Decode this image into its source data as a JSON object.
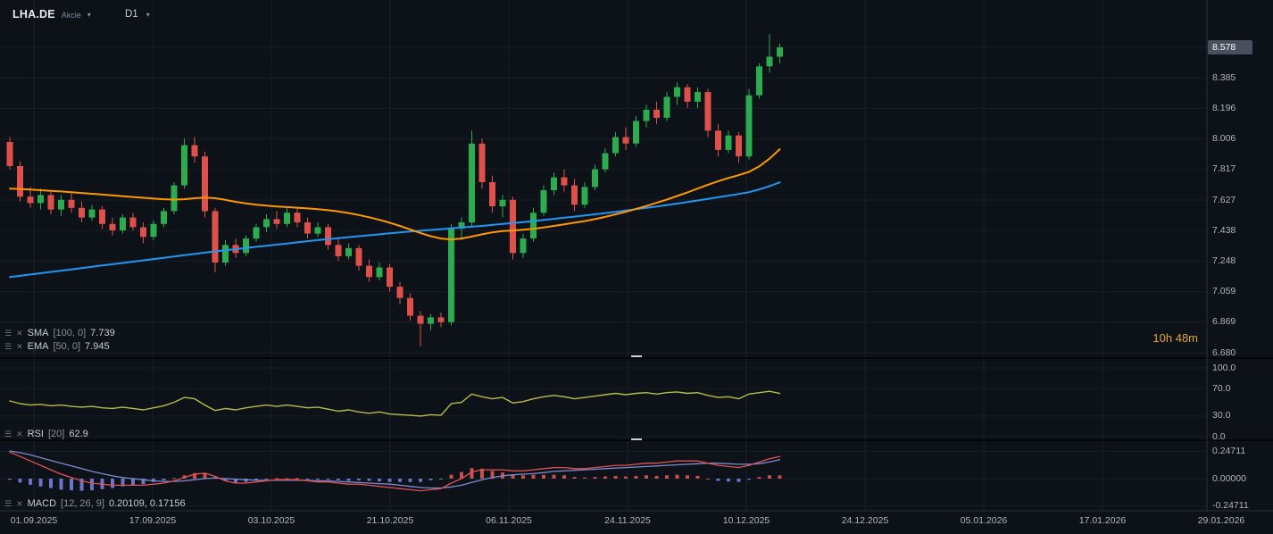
{
  "header": {
    "symbol": "LHA.DE",
    "instrument_type": "Akcie",
    "timeframe": "D1"
  },
  "countdown": {
    "label": "10h 48m"
  },
  "indicators": {
    "sma": {
      "name": "SMA",
      "params": "[100, 0]",
      "value": "7.739"
    },
    "ema": {
      "name": "EMA",
      "params": "[50, 0]",
      "value": "7.945"
    },
    "rsi": {
      "name": "RSI",
      "params": "[20]",
      "value": "62.9"
    },
    "macd": {
      "name": "MACD",
      "params": "[12, 26, 9]",
      "value": "0.20109, 0.17156"
    }
  },
  "price_axis": {
    "last_price": "8.578",
    "labels": [
      "8.578",
      "8.385",
      "8.196",
      "8.006",
      "7.817",
      "7.627",
      "7.438",
      "7.248",
      "7.059",
      "6.869",
      "6.680"
    ]
  },
  "rsi_axis": {
    "labels": [
      "100.0",
      "70.0",
      "30.0",
      "0.0"
    ]
  },
  "macd_axis": {
    "labels": [
      "0.24711",
      "0.00000",
      "-0.24711"
    ]
  },
  "time_axis": {
    "labels": [
      "01.09.2025",
      "17.09.2025",
      "03.10.2025",
      "21.10.2025",
      "06.11.2025",
      "24.11.2025",
      "10.12.2025",
      "24.12.2025",
      "05.01.2026",
      "17.01.2026",
      "29.01.2026"
    ]
  },
  "chart_data": {
    "type": "candlestick",
    "symbol": "LHA.DE",
    "interval": "D1",
    "title": "LHA.DE daily candlestick chart with EMA(50), SMA(100), RSI(20), MACD(12,26,9)",
    "price_range": {
      "top": 8.578,
      "bottom": 6.68
    },
    "rsi_range": [
      0,
      100
    ],
    "macd_range": [
      -0.24711,
      0.24711
    ],
    "candles": [
      [
        7.99,
        8.02,
        7.82,
        7.84
      ],
      [
        7.84,
        7.87,
        7.62,
        7.65
      ],
      [
        7.65,
        7.71,
        7.58,
        7.61
      ],
      [
        7.61,
        7.7,
        7.57,
        7.66
      ],
      [
        7.66,
        7.69,
        7.54,
        7.57
      ],
      [
        7.57,
        7.66,
        7.53,
        7.63
      ],
      [
        7.63,
        7.67,
        7.55,
        7.58
      ],
      [
        7.58,
        7.62,
        7.49,
        7.52
      ],
      [
        7.52,
        7.6,
        7.5,
        7.57
      ],
      [
        7.57,
        7.59,
        7.45,
        7.48
      ],
      [
        7.48,
        7.52,
        7.41,
        7.44
      ],
      [
        7.44,
        7.54,
        7.42,
        7.52
      ],
      [
        7.52,
        7.55,
        7.44,
        7.46
      ],
      [
        7.46,
        7.49,
        7.36,
        7.4
      ],
      [
        7.4,
        7.5,
        7.38,
        7.48
      ],
      [
        7.48,
        7.58,
        7.46,
        7.56
      ],
      [
        7.56,
        7.74,
        7.54,
        7.72
      ],
      [
        7.72,
        8.01,
        7.7,
        7.97
      ],
      [
        7.97,
        8.02,
        7.86,
        7.9
      ],
      [
        7.9,
        7.93,
        7.52,
        7.56
      ],
      [
        7.56,
        7.58,
        7.18,
        7.24
      ],
      [
        7.24,
        7.38,
        7.22,
        7.35
      ],
      [
        7.35,
        7.39,
        7.27,
        7.3
      ],
      [
        7.3,
        7.41,
        7.28,
        7.39
      ],
      [
        7.39,
        7.48,
        7.37,
        7.46
      ],
      [
        7.46,
        7.54,
        7.43,
        7.51
      ],
      [
        7.51,
        7.56,
        7.45,
        7.48
      ],
      [
        7.48,
        7.58,
        7.46,
        7.55
      ],
      [
        7.55,
        7.58,
        7.46,
        7.49
      ],
      [
        7.49,
        7.52,
        7.39,
        7.42
      ],
      [
        7.42,
        7.49,
        7.4,
        7.46
      ],
      [
        7.46,
        7.48,
        7.32,
        7.35
      ],
      [
        7.35,
        7.39,
        7.25,
        7.28
      ],
      [
        7.28,
        7.36,
        7.26,
        7.33
      ],
      [
        7.33,
        7.35,
        7.19,
        7.22
      ],
      [
        7.22,
        7.26,
        7.12,
        7.15
      ],
      [
        7.15,
        7.24,
        7.13,
        7.21
      ],
      [
        7.21,
        7.23,
        7.06,
        7.09
      ],
      [
        7.09,
        7.12,
        6.98,
        7.02
      ],
      [
        7.02,
        7.05,
        6.88,
        6.91
      ],
      [
        6.91,
        6.94,
        6.72,
        6.86
      ],
      [
        6.86,
        6.92,
        6.82,
        6.9
      ],
      [
        6.9,
        6.93,
        6.84,
        6.87
      ],
      [
        6.87,
        7.48,
        6.85,
        7.45
      ],
      [
        7.45,
        7.52,
        7.38,
        7.49
      ],
      [
        7.49,
        8.06,
        7.46,
        7.98
      ],
      [
        7.98,
        8.01,
        7.7,
        7.74
      ],
      [
        7.74,
        7.78,
        7.55,
        7.59
      ],
      [
        7.59,
        7.66,
        7.52,
        7.63
      ],
      [
        7.63,
        7.65,
        7.26,
        7.3
      ],
      [
        7.3,
        7.42,
        7.27,
        7.39
      ],
      [
        7.39,
        7.58,
        7.37,
        7.55
      ],
      [
        7.55,
        7.72,
        7.53,
        7.69
      ],
      [
        7.69,
        7.8,
        7.66,
        7.77
      ],
      [
        7.77,
        7.82,
        7.68,
        7.72
      ],
      [
        7.72,
        7.76,
        7.56,
        7.6
      ],
      [
        7.6,
        7.74,
        7.58,
        7.71
      ],
      [
        7.71,
        7.85,
        7.69,
        7.82
      ],
      [
        7.82,
        7.95,
        7.8,
        7.92
      ],
      [
        7.92,
        8.05,
        7.9,
        8.02
      ],
      [
        8.02,
        8.08,
        7.94,
        7.98
      ],
      [
        7.98,
        8.15,
        7.96,
        8.12
      ],
      [
        8.12,
        8.22,
        8.08,
        8.19
      ],
      [
        8.19,
        8.24,
        8.1,
        8.14
      ],
      [
        8.14,
        8.3,
        8.12,
        8.27
      ],
      [
        8.27,
        8.36,
        8.22,
        8.33
      ],
      [
        8.33,
        8.35,
        8.2,
        8.24
      ],
      [
        8.24,
        8.33,
        8.2,
        8.3
      ],
      [
        8.3,
        8.32,
        8.02,
        8.06
      ],
      [
        8.06,
        8.1,
        7.9,
        7.94
      ],
      [
        7.94,
        8.06,
        7.92,
        8.03
      ],
      [
        8.03,
        8.05,
        7.86,
        7.9
      ],
      [
        7.9,
        8.32,
        7.88,
        8.28
      ],
      [
        8.28,
        8.48,
        8.26,
        8.46
      ],
      [
        8.46,
        8.66,
        8.42,
        8.52
      ],
      [
        8.52,
        8.6,
        8.48,
        8.578
      ]
    ],
    "sma100": [
      7.15,
      7.158,
      7.166,
      7.174,
      7.182,
      7.19,
      7.198,
      7.206,
      7.214,
      7.222,
      7.23,
      7.238,
      7.246,
      7.254,
      7.262,
      7.27,
      7.278,
      7.286,
      7.294,
      7.302,
      7.31,
      7.317,
      7.324,
      7.331,
      7.338,
      7.345,
      7.352,
      7.359,
      7.366,
      7.373,
      7.38,
      7.386,
      7.392,
      7.398,
      7.404,
      7.41,
      7.416,
      7.422,
      7.428,
      7.433,
      7.438,
      7.443,
      7.448,
      7.453,
      7.458,
      7.463,
      7.468,
      7.474,
      7.48,
      7.486,
      7.492,
      7.498,
      7.505,
      7.512,
      7.519,
      7.526,
      7.533,
      7.54,
      7.548,
      7.556,
      7.564,
      7.572,
      7.58,
      7.589,
      7.598,
      7.607,
      7.616,
      7.626,
      7.636,
      7.646,
      7.656,
      7.667,
      7.678,
      7.695,
      7.715,
      7.739
    ],
    "ema50": [
      7.7,
      7.698,
      7.694,
      7.69,
      7.686,
      7.682,
      7.678,
      7.673,
      7.668,
      7.663,
      7.658,
      7.653,
      7.648,
      7.643,
      7.638,
      7.634,
      7.632,
      7.634,
      7.64,
      7.644,
      7.64,
      7.63,
      7.618,
      7.608,
      7.6,
      7.594,
      7.589,
      7.585,
      7.581,
      7.577,
      7.572,
      7.566,
      7.558,
      7.548,
      7.536,
      7.522,
      7.506,
      7.488,
      7.468,
      7.446,
      7.424,
      7.404,
      7.39,
      7.384,
      7.39,
      7.402,
      7.416,
      7.428,
      7.436,
      7.44,
      7.444,
      7.45,
      7.458,
      7.468,
      7.478,
      7.488,
      7.498,
      7.51,
      7.524,
      7.54,
      7.556,
      7.574,
      7.592,
      7.612,
      7.632,
      7.654,
      7.676,
      7.7,
      7.724,
      7.746,
      7.766,
      7.784,
      7.804,
      7.838,
      7.886,
      7.945
    ],
    "rsi20": [
      52,
      48,
      46,
      47,
      45,
      46,
      44,
      43,
      44,
      42,
      41,
      43,
      41,
      39,
      42,
      45,
      50,
      57,
      55,
      46,
      38,
      41,
      39,
      42,
      44,
      46,
      44,
      46,
      44,
      42,
      43,
      40,
      37,
      39,
      36,
      34,
      36,
      33,
      32,
      31,
      30,
      32,
      31,
      48,
      50,
      62,
      58,
      55,
      57,
      49,
      51,
      55,
      58,
      60,
      58,
      55,
      57,
      59,
      61,
      63,
      61,
      63,
      64,
      62,
      64,
      65,
      63,
      64,
      60,
      57,
      58,
      55,
      62,
      64,
      66,
      62.9
    ],
    "macd": {
      "macd": [
        0.24,
        0.2,
        0.16,
        0.12,
        0.08,
        0.04,
        0.01,
        -0.02,
        -0.04,
        -0.05,
        -0.06,
        -0.06,
        -0.06,
        -0.06,
        -0.05,
        -0.04,
        -0.02,
        0.01,
        0.04,
        0.05,
        0.02,
        -0.02,
        -0.04,
        -0.04,
        -0.03,
        -0.02,
        -0.01,
        -0.01,
        -0.01,
        -0.02,
        -0.03,
        -0.03,
        -0.04,
        -0.05,
        -0.05,
        -0.06,
        -0.07,
        -0.08,
        -0.09,
        -0.1,
        -0.11,
        -0.1,
        -0.09,
        -0.04,
        0.0,
        0.06,
        0.08,
        0.08,
        0.08,
        0.07,
        0.07,
        0.08,
        0.09,
        0.1,
        0.1,
        0.09,
        0.09,
        0.1,
        0.11,
        0.12,
        0.12,
        0.13,
        0.14,
        0.14,
        0.15,
        0.16,
        0.16,
        0.16,
        0.14,
        0.12,
        0.11,
        0.1,
        0.12,
        0.15,
        0.18,
        0.20109
      ],
      "signal": [
        0.25,
        0.235,
        0.215,
        0.19,
        0.165,
        0.14,
        0.115,
        0.09,
        0.065,
        0.045,
        0.025,
        0.01,
        0.0,
        -0.01,
        -0.02,
        -0.025,
        -0.025,
        -0.02,
        -0.01,
        0.0,
        0.005,
        0.0,
        -0.005,
        -0.01,
        -0.015,
        -0.015,
        -0.015,
        -0.015,
        -0.015,
        -0.015,
        -0.02,
        -0.02,
        -0.025,
        -0.03,
        -0.035,
        -0.04,
        -0.045,
        -0.05,
        -0.06,
        -0.07,
        -0.08,
        -0.085,
        -0.085,
        -0.075,
        -0.06,
        -0.035,
        -0.01,
        0.01,
        0.025,
        0.035,
        0.04,
        0.045,
        0.055,
        0.065,
        0.07,
        0.075,
        0.08,
        0.085,
        0.09,
        0.095,
        0.1,
        0.105,
        0.11,
        0.115,
        0.12,
        0.125,
        0.13,
        0.135,
        0.14,
        0.14,
        0.135,
        0.13,
        0.13,
        0.135,
        0.15,
        0.17156
      ]
    },
    "colors": {
      "up": "#2cab4f",
      "down": "#e0504a",
      "sma": "#2196f3",
      "ema": "#ff9800",
      "rsi": "#b8bb46",
      "macd_line": "#e05252",
      "macd_signal": "#7c8bd0",
      "hist_pos": "#c94f4f",
      "hist_neg": "#6b74c9",
      "last_price_bg": "#494f5c",
      "countdown": "#e0a23e",
      "background": "#0d1218",
      "grid": "#1b202a"
    }
  }
}
